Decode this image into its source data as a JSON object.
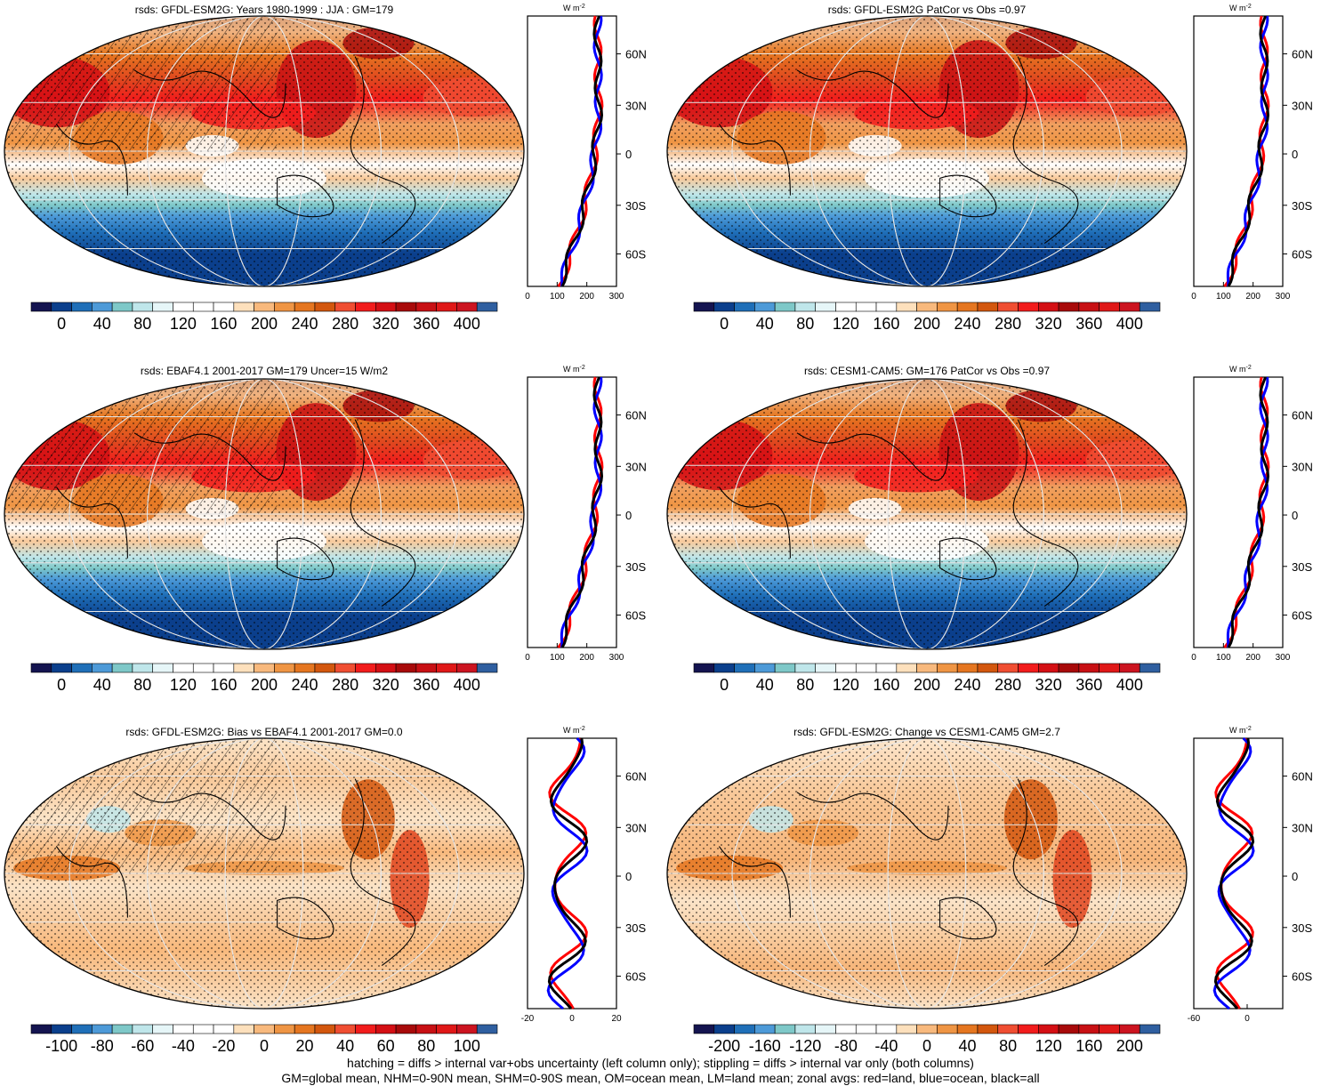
{
  "footer": {
    "line1": "hatching = diffs > internal var+obs uncertainty (left column only); stippling = diffs > internal var only (both columns)",
    "line2": "GM=global mean, NHM=0-90N mean, SHM=0-90S mean, OM=ocean mean, LM=land mean; zonal avgs: red=land, blue=ocean, black=all"
  },
  "zonal_unit": "W m",
  "zonal_unit_sup": "-2",
  "lat_labels": [
    "60N",
    "30N",
    "0",
    "30S",
    "60S"
  ],
  "colors": {
    "land": "#ff0000",
    "ocean": "#0000ff",
    "all": "#000000"
  },
  "panels": [
    {
      "title": "rsds: GFDL-ESM2G: Years 1980-1999 : JJA : GM=179",
      "type": "abs",
      "hatch": true,
      "cbar_labels": [
        "0",
        "40",
        "80",
        "120",
        "160",
        "200",
        "240",
        "280",
        "320",
        "360",
        "400"
      ],
      "zonal_ticks": [
        "0",
        "100",
        "200",
        "300"
      ]
    },
    {
      "title": "rsds: GFDL-ESM2G PatCor vs Obs =0.97",
      "type": "abs",
      "hatch": false,
      "cbar_labels": [
        "0",
        "40",
        "80",
        "120",
        "160",
        "200",
        "240",
        "280",
        "320",
        "360",
        "400"
      ],
      "zonal_ticks": [
        "0",
        "100",
        "200",
        "300"
      ]
    },
    {
      "title": "rsds: EBAF4.1 2001-2017 GM=179 Uncer=15 W/m2",
      "type": "abs",
      "hatch": true,
      "cbar_labels": [
        "0",
        "40",
        "80",
        "120",
        "160",
        "200",
        "240",
        "280",
        "320",
        "360",
        "400"
      ],
      "zonal_ticks": [
        "0",
        "100",
        "200",
        "300"
      ]
    },
    {
      "title": "rsds: CESM1-CAM5: GM=176 PatCor vs Obs =0.97",
      "type": "abs",
      "hatch": false,
      "cbar_labels": [
        "0",
        "40",
        "80",
        "120",
        "160",
        "200",
        "240",
        "280",
        "320",
        "360",
        "400"
      ],
      "zonal_ticks": [
        "0",
        "100",
        "200",
        "300"
      ]
    },
    {
      "title": "rsds: GFDL-ESM2G: Bias vs EBAF4.1 2001-2017 GM=0.0",
      "type": "diff",
      "hatch": true,
      "cbar_labels": [
        "-100",
        "-80",
        "-60",
        "-40",
        "-20",
        "0",
        "20",
        "40",
        "60",
        "80",
        "100"
      ],
      "zonal_ticks": [
        "-20",
        "0",
        "20"
      ]
    },
    {
      "title": "rsds: GFDL-ESM2G: Change vs CESM1-CAM5 GM=2.7",
      "type": "diff2",
      "hatch": false,
      "cbar_labels": [
        "-200",
        "-160",
        "-120",
        "-80",
        "-40",
        "0",
        "40",
        "80",
        "120",
        "160",
        "200"
      ],
      "zonal_ticks": [
        "-60",
        "0"
      ]
    }
  ]
}
